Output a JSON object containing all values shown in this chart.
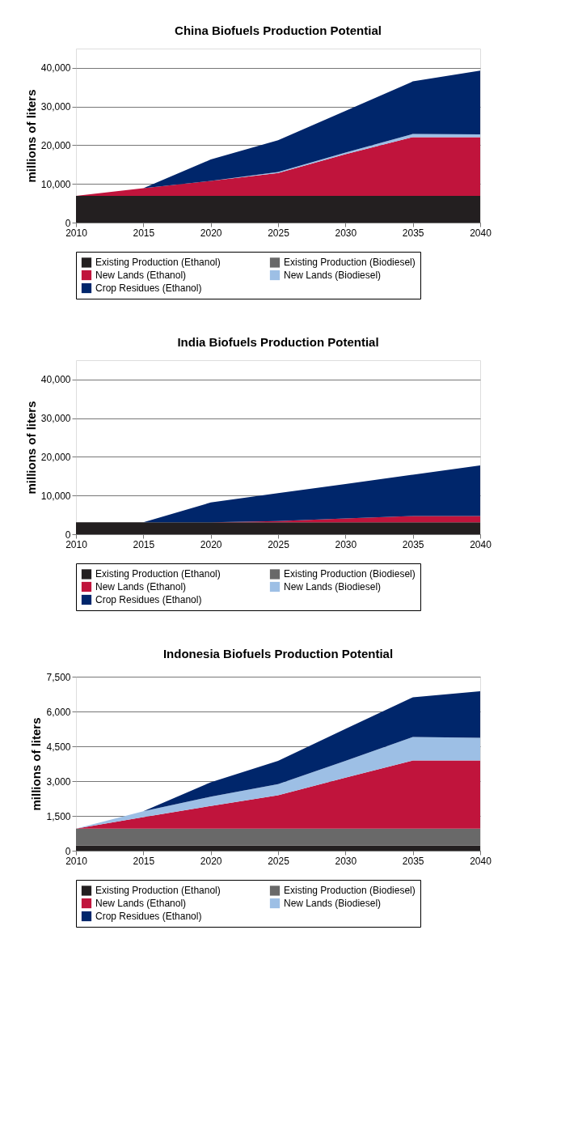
{
  "chart_data": [
    {
      "type": "area",
      "title": "China Biofuels Production Potential",
      "ylabel": "millions of liters",
      "stacked": true,
      "grid": "y",
      "legend": "bottom",
      "x": [
        2010,
        2015,
        2020,
        2025,
        2030,
        2035,
        2040
      ],
      "xlim": [
        2010,
        2040
      ],
      "xticks": [
        2010,
        2015,
        2020,
        2025,
        2030,
        2035,
        2040
      ],
      "ylim": [
        0,
        45000
      ],
      "yticks": [
        0,
        {
          "value": 10000,
          "label": "10,000"
        },
        {
          "value": 20000,
          "label": "20,000"
        },
        {
          "value": 30000,
          "label": "30,000"
        },
        {
          "value": 40000,
          "label": "40,000"
        }
      ],
      "series": [
        {
          "name": "Existing Production (Ethanol)",
          "color": "#231f20",
          "values": [
            6900,
            6900,
            6900,
            6900,
            6900,
            6900,
            6900
          ]
        },
        {
          "name": "Existing Production (Biodiesel)",
          "color": "#696969",
          "values": [
            null,
            null,
            null,
            null,
            null,
            null,
            null
          ]
        },
        {
          "name": "New Lands (Ethanol)",
          "color": "#c0143c",
          "values": [
            0,
            2000,
            3900,
            5900,
            10800,
            15200,
            15200
          ]
        },
        {
          "name": "New Lands (Biodiesel)",
          "color": "#9dbfe5",
          "values": [
            0,
            0,
            0,
            300,
            400,
            800,
            700
          ]
        },
        {
          "name": "Crop Residues (Ethanol)",
          "color": "#00266b",
          "values": [
            0,
            0,
            5500,
            8200,
            10800,
            13600,
            16500
          ]
        }
      ]
    },
    {
      "type": "area",
      "title": "India Biofuels Production Potential",
      "ylabel": "millions of liters",
      "stacked": true,
      "grid": "y",
      "legend": "bottom",
      "x": [
        2010,
        2015,
        2020,
        2025,
        2030,
        2035,
        2040
      ],
      "xlim": [
        2010,
        2040
      ],
      "xticks": [
        2010,
        2015,
        2020,
        2025,
        2030,
        2035,
        2040
      ],
      "ylim": [
        0,
        45000
      ],
      "yticks": [
        0,
        {
          "value": 10000,
          "label": "10,000"
        },
        {
          "value": 20000,
          "label": "20,000"
        },
        {
          "value": 30000,
          "label": "30,000"
        },
        {
          "value": 40000,
          "label": "40,000"
        }
      ],
      "series": [
        {
          "name": "Existing Production (Ethanol)",
          "color": "#231f20",
          "values": [
            3100,
            3100,
            3100,
            3100,
            3100,
            3100,
            3100
          ]
        },
        {
          "name": "Existing Production (Biodiesel)",
          "color": "#696969",
          "values": [
            null,
            null,
            null,
            null,
            null,
            null,
            null
          ]
        },
        {
          "name": "New Lands (Ethanol)",
          "color": "#c0143c",
          "values": [
            0,
            0,
            0,
            300,
            1000,
            1600,
            1600
          ]
        },
        {
          "name": "New Lands (Biodiesel)",
          "color": "#9dbfe5",
          "values": [
            null,
            null,
            null,
            null,
            null,
            null,
            null
          ]
        },
        {
          "name": "Crop Residues (Ethanol)",
          "color": "#00266b",
          "values": [
            0,
            0,
            5100,
            7200,
            8900,
            10700,
            13100
          ]
        }
      ]
    },
    {
      "type": "area",
      "title": "Indonesia Biofuels Production Potential",
      "ylabel": "millions of liters",
      "stacked": true,
      "grid": "y",
      "legend": "bottom",
      "x": [
        2010,
        2015,
        2020,
        2025,
        2030,
        2035,
        2040
      ],
      "xlim": [
        2010,
        2040
      ],
      "xticks": [
        2010,
        2015,
        2020,
        2025,
        2030,
        2035,
        2040
      ],
      "ylim": [
        0,
        7500
      ],
      "yticks": [
        0,
        {
          "value": 1500,
          "label": "1,500"
        },
        {
          "value": 3000,
          "label": "3,000"
        },
        {
          "value": 4500,
          "label": "4,500"
        },
        {
          "value": 6000,
          "label": "6,000"
        },
        {
          "value": 7500,
          "label": "7,500"
        }
      ],
      "series": [
        {
          "name": "Existing Production (Ethanol)",
          "color": "#231f20",
          "values": [
            230,
            230,
            230,
            230,
            230,
            230,
            230
          ]
        },
        {
          "name": "Existing Production (Biodiesel)",
          "color": "#696969",
          "values": [
            720,
            720,
            720,
            720,
            720,
            720,
            720
          ]
        },
        {
          "name": "New Lands (Ethanol)",
          "color": "#c0143c",
          "values": [
            0,
            500,
            980,
            1440,
            2200,
            2940,
            2940
          ]
        },
        {
          "name": "New Lands (Biodiesel)",
          "color": "#9dbfe5",
          "values": [
            0,
            250,
            400,
            480,
            720,
            1010,
            980
          ]
        },
        {
          "name": "Crop Residues (Ethanol)",
          "color": "#00266b",
          "values": [
            0,
            0,
            620,
            1000,
            1380,
            1710,
            2000
          ]
        }
      ]
    }
  ]
}
